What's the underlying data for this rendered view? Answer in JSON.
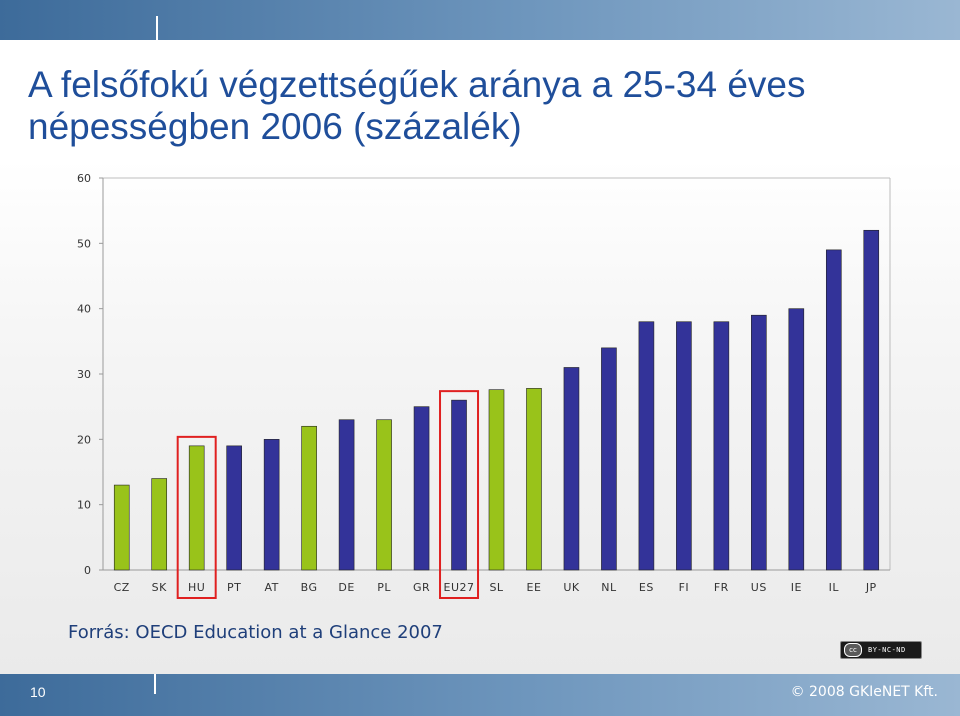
{
  "title": {
    "line1": "A felsőfokú végzettségűek aránya a 25-34 éves",
    "line2": "népességben 2006 (százalék)"
  },
  "source": "Forrás: OECD Education at a Glance 2007",
  "license_badge": {
    "circle": "cc",
    "text": "BY-NC-ND"
  },
  "page_number": "10",
  "copyright": "© 2008 GKIeNET Kft.",
  "colors": {
    "green": "#99c31a",
    "blue": "#333399",
    "highlight": "#e02020",
    "band": "#4a77a6",
    "title": "#1f4e9a"
  },
  "chart_data": {
    "type": "bar",
    "categories": [
      "CZ",
      "SK",
      "HU",
      "PT",
      "AT",
      "BG",
      "DE",
      "PL",
      "GR",
      "EU27",
      "SL",
      "EE",
      "UK",
      "NL",
      "ES",
      "FI",
      "FR",
      "US",
      "IE",
      "IL",
      "JP"
    ],
    "values": [
      13,
      14,
      19,
      19,
      20,
      22,
      23,
      23,
      25,
      26,
      27.6,
      27.8,
      31,
      34,
      38,
      38,
      38,
      39,
      40,
      49,
      52
    ],
    "bar_colors": [
      "green",
      "green",
      "green",
      "blue",
      "blue",
      "green",
      "blue",
      "green",
      "blue",
      "blue",
      "green",
      "green",
      "blue",
      "blue",
      "blue",
      "blue",
      "blue",
      "blue",
      "blue",
      "blue",
      "blue"
    ],
    "highlighted": [
      "HU",
      "EU27"
    ],
    "ylim": [
      0,
      60
    ],
    "yticks": [
      0,
      10,
      20,
      30,
      40,
      50,
      60
    ],
    "title": "",
    "xlabel": "",
    "ylabel": "",
    "grid": false
  }
}
